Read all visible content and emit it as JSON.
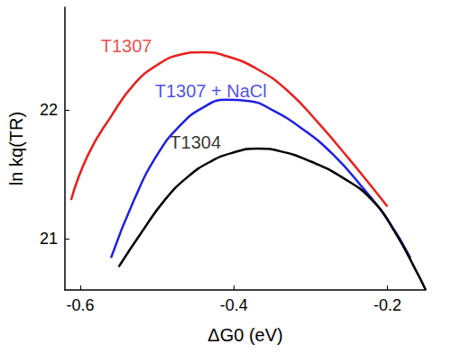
{
  "chart_data": {
    "type": "line",
    "x_label": "ΔG0 (eV)",
    "y_label": "ln kq(TR)",
    "xlim": [
      -0.62,
      -0.15
    ],
    "xticks": [
      -0.6,
      -0.4,
      -0.2
    ],
    "ylim": [
      20.6,
      22.8
    ],
    "yticks": [
      21,
      22
    ],
    "grid": false,
    "series": [
      {
        "color": "#e8201c",
        "x": [
          -0.612,
          -0.59,
          -0.56,
          -0.53,
          -0.5,
          -0.47,
          -0.44,
          -0.41,
          -0.37,
          -0.33,
          -0.29,
          -0.25,
          -0.22,
          -0.2
        ],
        "values": [
          21.3,
          21.65,
          21.95,
          22.2,
          22.35,
          22.43,
          22.45,
          22.42,
          22.32,
          22.15,
          21.9,
          21.62,
          21.4,
          21.25
        ]
      },
      {
        "color": "#1f1fe0",
        "x": [
          -0.56,
          -0.53,
          -0.5,
          -0.47,
          -0.44,
          -0.41,
          -0.38,
          -0.35,
          -0.31,
          -0.27,
          -0.23,
          -0.2,
          -0.17
        ],
        "values": [
          20.85,
          21.3,
          21.65,
          21.88,
          22.02,
          22.08,
          22.07,
          22.0,
          21.85,
          21.65,
          21.38,
          21.15,
          20.85
        ]
      },
      {
        "color": "#000000",
        "x": [
          -0.55,
          -0.52,
          -0.49,
          -0.46,
          -0.43,
          -0.4,
          -0.37,
          -0.34,
          -0.3,
          -0.26,
          -0.22,
          -0.19,
          -0.16,
          -0.15
        ],
        "values": [
          20.78,
          21.05,
          21.3,
          21.48,
          21.6,
          21.67,
          21.7,
          21.68,
          21.6,
          21.48,
          21.3,
          21.05,
          20.72,
          20.6
        ]
      }
    ],
    "annotations": [
      {
        "text": "T1307",
        "x": -0.54,
        "y": 22.5,
        "color": "#e8201c"
      },
      {
        "text": "T1307 + NaCl",
        "x": -0.43,
        "y": 22.15,
        "color": "#1f1fe0"
      },
      {
        "text": "T1304",
        "x": -0.45,
        "y": 21.75,
        "color": "#000000"
      }
    ]
  }
}
